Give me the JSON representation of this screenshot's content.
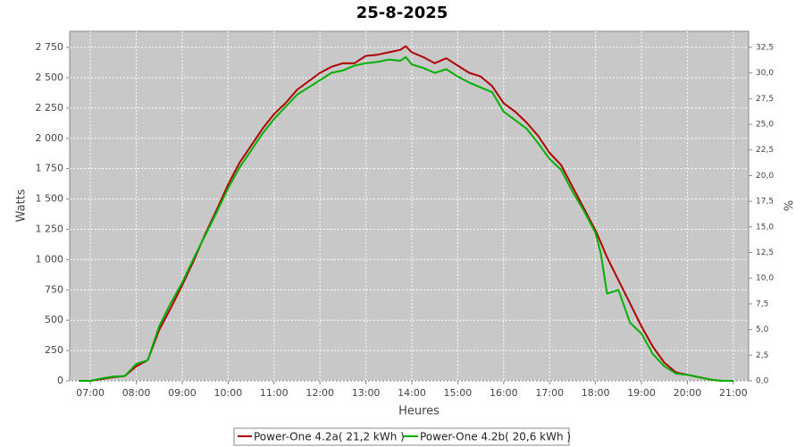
{
  "chart_data": {
    "type": "line",
    "title": "25-8-2025",
    "x_label": "Heures",
    "y_label": "Watts",
    "y2_label": "%",
    "x": [
      405,
      420,
      435,
      450,
      465,
      480,
      495,
      510,
      525,
      540,
      555,
      570,
      585,
      600,
      615,
      630,
      645,
      660,
      675,
      690,
      705,
      720,
      735,
      750,
      765,
      780,
      795,
      810,
      825,
      832,
      840,
      855,
      870,
      885,
      900,
      915,
      930,
      945,
      960,
      975,
      990,
      1005,
      1020,
      1035,
      1050,
      1065,
      1080,
      1087,
      1095,
      1110,
      1125,
      1140,
      1155,
      1170,
      1185,
      1200,
      1215,
      1230,
      1245,
      1260
    ],
    "series": [
      {
        "name": "Power-One 4.2a( 21,2 kWh )",
        "color": "#b00000",
        "values": [
          0,
          0,
          15,
          30,
          40,
          120,
          170,
          420,
          600,
          790,
          990,
          1210,
          1410,
          1620,
          1800,
          1940,
          2080,
          2200,
          2290,
          2400,
          2470,
          2540,
          2590,
          2620,
          2620,
          2680,
          2690,
          2710,
          2730,
          2760,
          2710,
          2670,
          2620,
          2660,
          2600,
          2540,
          2510,
          2430,
          2290,
          2220,
          2130,
          2020,
          1880,
          1780,
          1600,
          1420,
          1240,
          1140,
          1020,
          830,
          640,
          450,
          280,
          150,
          70,
          50,
          30,
          10,
          0,
          0
        ]
      },
      {
        "name": "Power-One 4.2b( 20,6 kWh )",
        "color": "#00b000",
        "values": [
          0,
          0,
          20,
          35,
          40,
          140,
          170,
          450,
          640,
          810,
          1010,
          1200,
          1390,
          1590,
          1760,
          1900,
          2040,
          2160,
          2260,
          2360,
          2420,
          2480,
          2540,
          2560,
          2600,
          2620,
          2630,
          2650,
          2640,
          2670,
          2610,
          2580,
          2540,
          2570,
          2510,
          2460,
          2420,
          2380,
          2220,
          2150,
          2080,
          1960,
          1830,
          1740,
          1560,
          1400,
          1220,
          1050,
          720,
          750,
          480,
          390,
          220,
          120,
          60,
          50,
          30,
          10,
          0,
          0
        ]
      }
    ],
    "xlim": [
      393,
      1280
    ],
    "xticks": [
      {
        "value": 420,
        "label": "07:00"
      },
      {
        "value": 480,
        "label": "08:00"
      },
      {
        "value": 540,
        "label": "09:00"
      },
      {
        "value": 600,
        "label": "10:00"
      },
      {
        "value": 660,
        "label": "11:00"
      },
      {
        "value": 720,
        "label": "12:00"
      },
      {
        "value": 780,
        "label": "13:00"
      },
      {
        "value": 840,
        "label": "14:00"
      },
      {
        "value": 900,
        "label": "15:00"
      },
      {
        "value": 960,
        "label": "16:00"
      },
      {
        "value": 1020,
        "label": "17:00"
      },
      {
        "value": 1080,
        "label": "18:00"
      },
      {
        "value": 1140,
        "label": "19:00"
      },
      {
        "value": 1200,
        "label": "20:00"
      },
      {
        "value": 1260,
        "label": "21:00"
      }
    ],
    "ylim": [
      0,
      2883
    ],
    "yticks": [
      0,
      250,
      500,
      750,
      {
        "value": 1000,
        "label": "1 000"
      },
      {
        "value": 1250,
        "label": "1 250"
      },
      {
        "value": 1500,
        "label": "1 500"
      },
      {
        "value": 1750,
        "label": "1 750"
      },
      {
        "value": 2000,
        "label": "2 000"
      },
      {
        "value": 2250,
        "label": "2 250"
      },
      {
        "value": 2500,
        "label": "2 500"
      },
      {
        "value": 2750,
        "label": "2 750"
      }
    ],
    "y2lim": [
      0,
      34.06
    ],
    "y2ticks": [
      {
        "value": 0,
        "label": "0,0"
      },
      {
        "value": 2.5,
        "label": "2,5"
      },
      {
        "value": 5,
        "label": "5,0"
      },
      {
        "value": 7.5,
        "label": "7,5"
      },
      {
        "value": 10,
        "label": "10,0"
      },
      {
        "value": 12.5,
        "label": "12,5"
      },
      {
        "value": 15,
        "label": "15,0"
      },
      {
        "value": 17.5,
        "label": "17,5"
      },
      {
        "value": 20,
        "label": "20,0"
      },
      {
        "value": 22.5,
        "label": "22,5"
      },
      {
        "value": 25,
        "label": "25,0"
      },
      {
        "value": 27.5,
        "label": "27,5"
      },
      {
        "value": 30,
        "label": "30,0"
      },
      {
        "value": 32.5,
        "label": "32,5"
      }
    ],
    "grid": true,
    "legend": "bottom"
  }
}
